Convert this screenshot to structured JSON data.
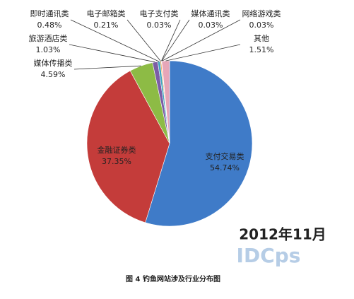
{
  "chart_data": {
    "type": "pie",
    "categories": [
      "支付交易类",
      "金融证券类",
      "媒体传播类",
      "旅游酒店类",
      "即时通讯类",
      "电子邮箱类",
      "电子支付类",
      "媒体通讯类",
      "网络游戏类",
      "其他"
    ],
    "values": [
      54.74,
      37.35,
      4.59,
      1.03,
      0.48,
      0.21,
      0.03,
      0.03,
      0.03,
      1.51
    ],
    "value_labels": [
      "54.74%",
      "37.35%",
      "4.59%",
      "1.03%",
      "0.48%",
      "0.21%",
      "0.03%",
      "0.03%",
      "0.03%",
      "1.51%"
    ],
    "colors": [
      "#3f7bc8",
      "#c43c3a",
      "#8dbb45",
      "#7c5da6",
      "#3ea6c2",
      "#f29a3a",
      "#5b7fb4",
      "#b65a58",
      "#9fbf63",
      "#e6a6b8"
    ],
    "date_note": "2012年11月",
    "watermark": "IDCps",
    "caption": "图 4  钓鱼网站涉及行业分布图"
  }
}
